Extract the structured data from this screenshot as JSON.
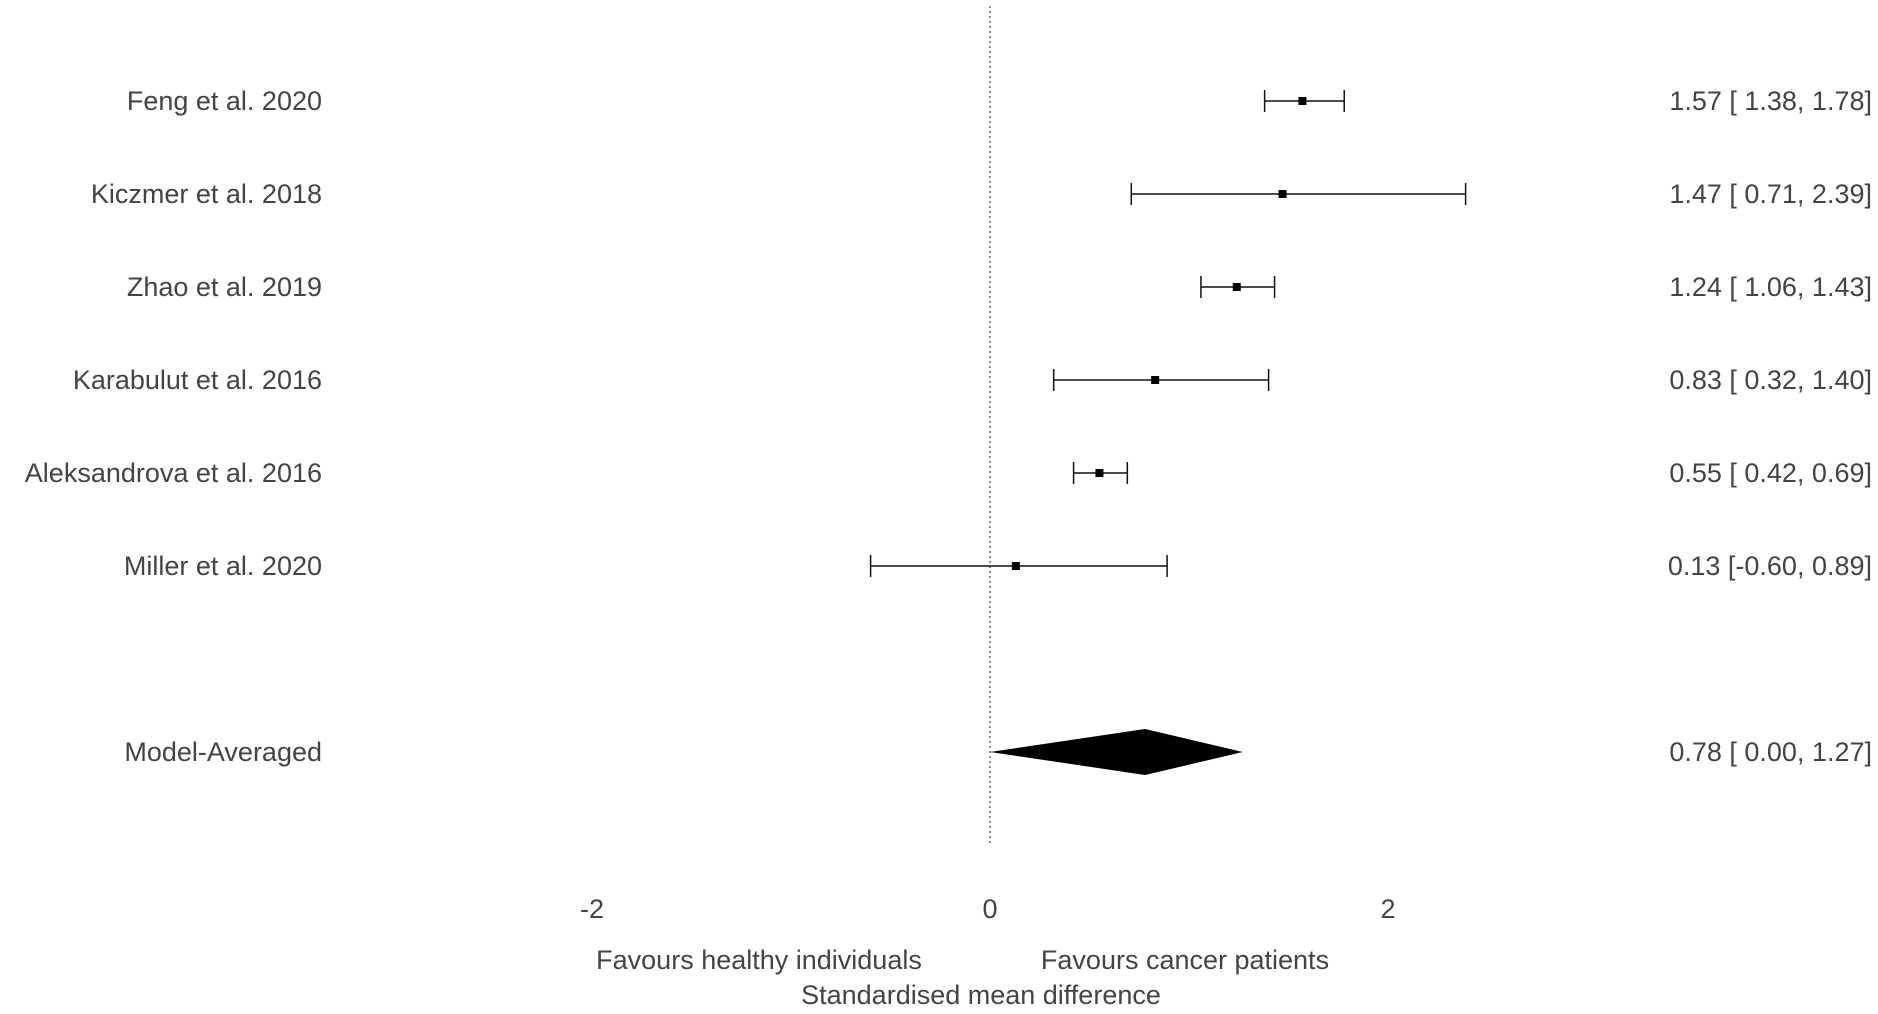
{
  "chart_data": {
    "type": "forest",
    "title": "",
    "xlabel": "Standardised mean difference",
    "favour_left": "Favours healthy individuals",
    "favour_right": "Favours cancer patients",
    "xlim": [
      -2,
      2
    ],
    "x_ticks": [
      -2,
      0,
      2
    ],
    "x_tick_labels": [
      "-2",
      "0",
      "2"
    ],
    "reference_line": 0,
    "studies": [
      {
        "label": "Feng et al. 2020",
        "estimate": 1.57,
        "lower": 1.38,
        "upper": 1.78,
        "ci_text": "1.57 [ 1.38, 1.78]"
      },
      {
        "label": "Kiczmer et al. 2018",
        "estimate": 1.47,
        "lower": 0.71,
        "upper": 2.39,
        "ci_text": "1.47 [ 0.71, 2.39]"
      },
      {
        "label": "Zhao et al. 2019",
        "estimate": 1.24,
        "lower": 1.06,
        "upper": 1.43,
        "ci_text": "1.24 [ 1.06, 1.43]"
      },
      {
        "label": "Karabulut et al. 2016",
        "estimate": 0.83,
        "lower": 0.32,
        "upper": 1.4,
        "ci_text": "0.83 [ 0.32, 1.40]"
      },
      {
        "label": "Aleksandrova et al. 2016",
        "estimate": 0.55,
        "lower": 0.42,
        "upper": 0.69,
        "ci_text": "0.55 [ 0.42, 0.69]"
      },
      {
        "label": "Miller et al. 2020",
        "estimate": 0.13,
        "lower": -0.6,
        "upper": 0.89,
        "ci_text": "0.13 [-0.60, 0.89]"
      }
    ],
    "summary": {
      "label": "Model-Averaged",
      "estimate": 0.78,
      "lower": 0.0,
      "upper": 1.27,
      "ci_text": "0.78 [ 0.00, 1.27]"
    }
  }
}
